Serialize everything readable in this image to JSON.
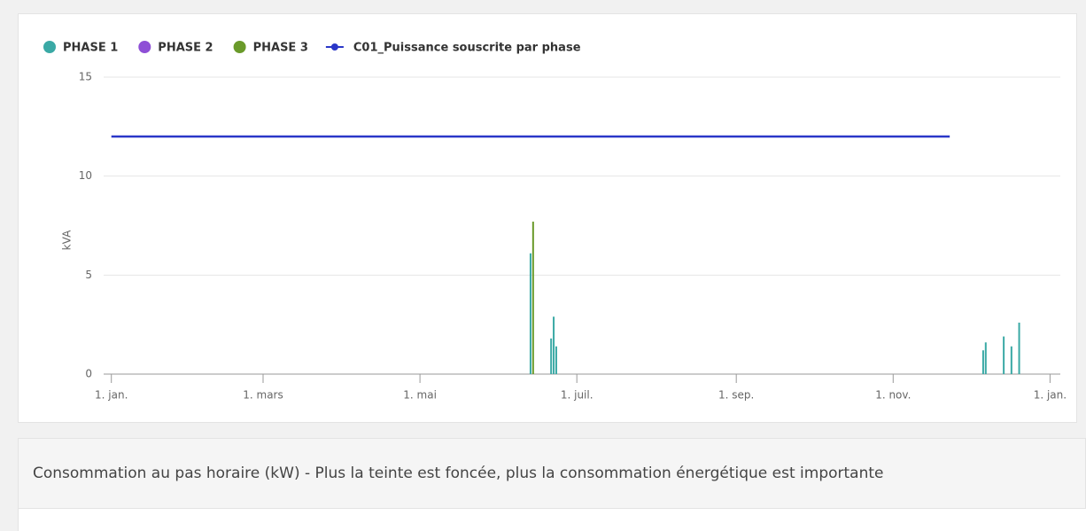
{
  "chart_data": {
    "type": "column-line",
    "ylabel": "kVA",
    "xlim": [
      -3,
      369
    ],
    "xticks": [
      {
        "value": 0,
        "label": "1. jan."
      },
      {
        "value": 59,
        "label": "1. mars"
      },
      {
        "value": 120,
        "label": "1. mai"
      },
      {
        "value": 181,
        "label": "1. juil."
      },
      {
        "value": 243,
        "label": "1. sep."
      },
      {
        "value": 304,
        "label": "1. nov."
      },
      {
        "value": 365,
        "label": "1. jan."
      }
    ],
    "ylim": [
      0,
      15
    ],
    "yticks": [
      0,
      5,
      10,
      15
    ],
    "grid": true,
    "series": [
      {
        "name": "PHASE 1",
        "color": "#3aa9a5",
        "type": "column",
        "x": [
          163,
          171,
          172,
          173,
          339,
          340,
          347,
          350,
          353
        ],
        "values": [
          6.1,
          1.8,
          2.9,
          1.4,
          1.2,
          1.6,
          1.9,
          1.4,
          2.6
        ]
      },
      {
        "name": "PHASE 2",
        "color": "#8e4fd6",
        "type": "column",
        "x": [],
        "values": []
      },
      {
        "name": "PHASE 3",
        "color": "#6a9a2a",
        "type": "column",
        "x": [
          164
        ],
        "values": [
          7.7
        ]
      },
      {
        "name": "C01_Puissance souscrite par phase",
        "color": "#2a37c8",
        "type": "line",
        "x": [
          0,
          326
        ],
        "values": [
          12,
          12
        ]
      }
    ]
  },
  "panel": {
    "title": "Consommation au pas horaire (kW) - Plus la teinte est foncée, plus la consommation énergétique est importante"
  }
}
